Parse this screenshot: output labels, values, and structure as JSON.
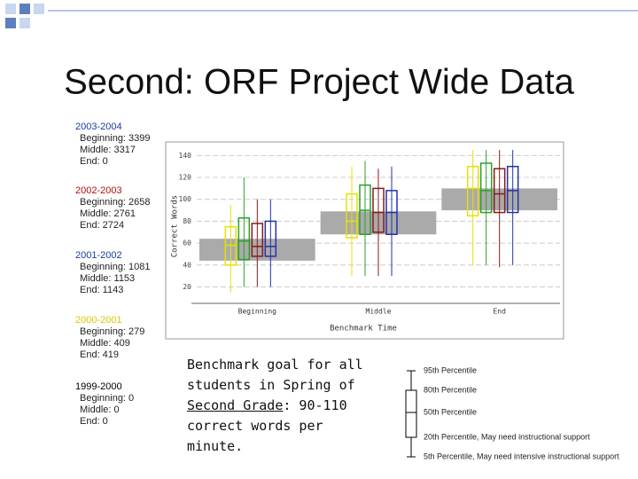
{
  "title": "Second: ORF Project Wide Data",
  "years": [
    {
      "label": "2003-2004",
      "color": "#1c3c9c",
      "lines": [
        "Beginning: 3399",
        "Middle: 3317",
        "End: 0"
      ]
    },
    {
      "label": "2002-2003",
      "color": "#b01010",
      "lines": [
        "Beginning: 2658",
        "Middle: 2761",
        "End: 2724"
      ]
    },
    {
      "label": "2001-2002",
      "color": "#1c3c9c",
      "lines": [
        "Beginning: 1081",
        "Middle: 1153",
        "End: 1143"
      ]
    },
    {
      "label": "2000-2001",
      "color": "#d8c800",
      "lines": [
        "Beginning: 279",
        "Middle: 409",
        "End: 419"
      ]
    },
    {
      "label": "1999-2000",
      "color": "#000000",
      "lines": [
        "Beginning: 0",
        "Middle: 0",
        "End: 0"
      ]
    }
  ],
  "chart_data": {
    "type": "box",
    "ylabel": "Correct Words",
    "xlabel": "Benchmark Time",
    "categories": [
      "Beginning",
      "Middle",
      "End"
    ],
    "ylim": [
      5,
      150
    ],
    "yticks": [
      20,
      40,
      60,
      80,
      100,
      120,
      140
    ],
    "grid": true,
    "benchmark_bands": [
      [
        44,
        64
      ],
      [
        68,
        89
      ],
      [
        90,
        110
      ]
    ],
    "band_color": "#aaaaaa",
    "series": [
      {
        "color": "#e8e000",
        "whislo": [
          15,
          30,
          40
        ],
        "q1": [
          40,
          65,
          85
        ],
        "med": [
          58,
          80,
          110
        ],
        "q3": [
          75,
          105,
          130
        ],
        "whishi": [
          95,
          130,
          145
        ]
      },
      {
        "color": "#2ca02c",
        "whislo": [
          20,
          30,
          40
        ],
        "q1": [
          45,
          68,
          88
        ],
        "med": [
          62,
          90,
          108
        ],
        "q3": [
          83,
          113,
          133
        ],
        "whishi": [
          120,
          135,
          145
        ]
      },
      {
        "color": "#8b1a1a",
        "whislo": [
          20,
          30,
          38
        ],
        "q1": [
          48,
          70,
          88
        ],
        "med": [
          57,
          88,
          105
        ],
        "q3": [
          78,
          110,
          128
        ],
        "whishi": [
          100,
          128,
          145
        ]
      },
      {
        "color": "#2233aa",
        "whislo": [
          20,
          30,
          40
        ],
        "q1": [
          48,
          68,
          88
        ],
        "med": [
          57,
          88,
          108
        ],
        "q3": [
          80,
          108,
          130
        ],
        "whishi": [
          100,
          130,
          145
        ]
      }
    ]
  },
  "goal": {
    "before": "Benchmark goal for all students in Spring of",
    "underlined": "Second Grade",
    "after": ": 90-110 correct words per minute."
  },
  "legend_key": {
    "labels": [
      "95th Percentile",
      "80th Percentile",
      "50th Percentile",
      "20th Percentile, May need instructional support",
      "5th Percentile, May need intensive instructional support"
    ]
  }
}
